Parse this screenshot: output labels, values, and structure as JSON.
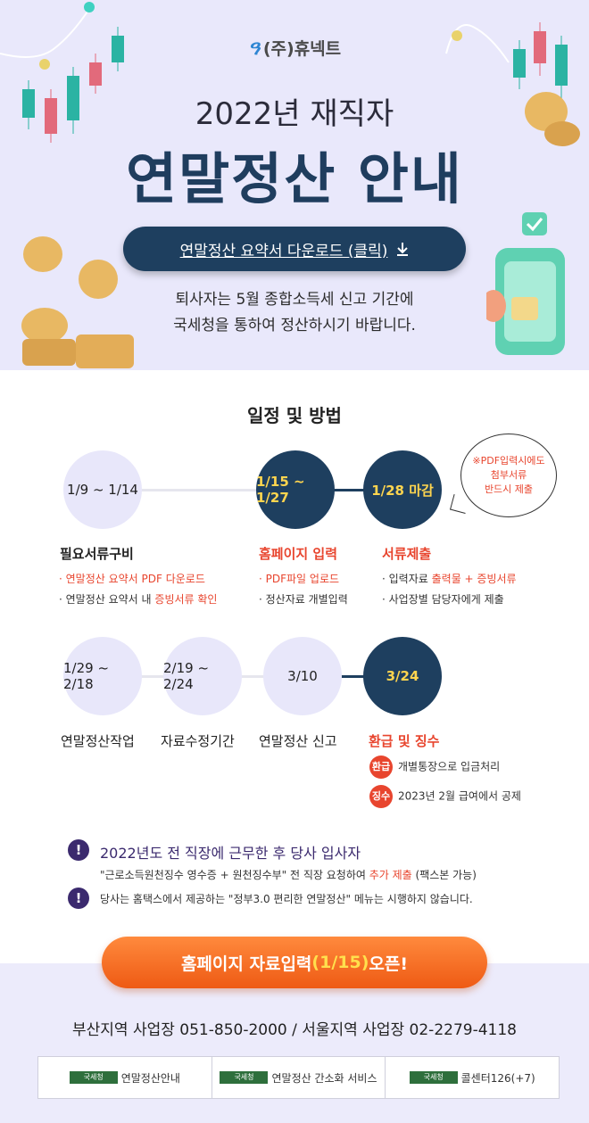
{
  "logo": {
    "text": "(주)휴넥트"
  },
  "hero": {
    "year_title": "2022년 재직자",
    "main_title": "연말정산 안내",
    "download_label": "연말정산 요약서 다운로드 (클릭)",
    "download_icon": "download-arrow-icon",
    "notice_line1": "퇴사자는 5월 종합소득세 신고 기간에",
    "notice_line2": "국세청을 통하여 정산하시기 바랍니다."
  },
  "schedule": {
    "title": "일정 및 방법",
    "row1": [
      {
        "date": "1/9 ~ 1/14",
        "title": "필요서류구비",
        "bullets": [
          "· 연말정산 요약서 PDF 다운로드",
          "· 연말정산 요약서 내 ",
          "증빙서류 확인"
        ]
      },
      {
        "date": "1/15 ~ 1/27",
        "title": "홈페이지 입력",
        "bullets": [
          "· PDF파일 업로드",
          "· 정산자료 개별입력"
        ]
      },
      {
        "date": "1/28 마감",
        "title": "서류제출",
        "bullets": [
          "· 입력자료 ",
          "출력물 + 증빙서류",
          "· 사업장별 담당자에게 제출"
        ]
      }
    ],
    "bubble": [
      "※PDF입력시에도",
      "첨부서류",
      "반드시 제출"
    ],
    "row2": [
      {
        "date": "1/29 ~ 2/18",
        "title": "연말정산작업"
      },
      {
        "date": "2/19 ~ 2/24",
        "title": "자료수정기간"
      },
      {
        "date": "3/10",
        "title": "연말정산 신고"
      },
      {
        "date": "3/24",
        "title": "환급 및 징수"
      }
    ],
    "refund": {
      "tag": "환급",
      "text": "개별통장으로 입금처리"
    },
    "collect": {
      "tag": "징수",
      "text": "2023년 2월 급여에서 공제"
    }
  },
  "notes": {
    "n1_title": "2022년도 전 직장에 근무한 후 당사 입사자",
    "n1_body_a": "\"근로소득원천징수 영수증 + 원천징수부\" 전 직장 요청하여 ",
    "n1_body_b": "추가 제출",
    "n1_body_c": " (팩스본 가능)",
    "n2": "당사는 홈택스에서 제공하는 \"정부3.0 편리한 연말정산\" 메뉴는 시행하지 않습니다."
  },
  "cta": {
    "a": "홈페이지 자료입력 ",
    "b": "(1/15)",
    "c": " 오픈!"
  },
  "contact": "부산지역 사업장 051-850-2000 / 서울지역 사업장 02-2279-4118",
  "links": [
    {
      "badge": "국세청",
      "label": "연말정산안내"
    },
    {
      "badge": "국세청",
      "label": "연말정산 간소화 서비스"
    },
    {
      "badge": "국세청",
      "label": "콜센터126(+7)"
    }
  ],
  "colors": {
    "navy": "#1e3f5f",
    "red": "#e8452e",
    "orange": "#ee5a14",
    "lavender": "#e9e8fb"
  }
}
